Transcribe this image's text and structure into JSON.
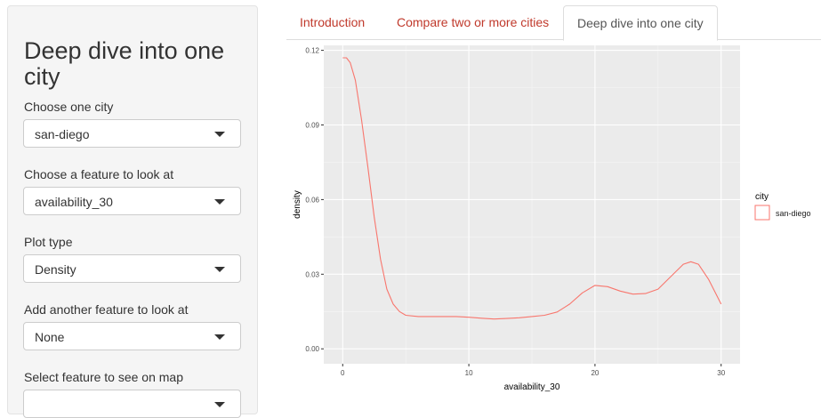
{
  "sidebar": {
    "title": "Deep dive into one city",
    "controls": [
      {
        "label": "Choose one city",
        "value": "san-diego"
      },
      {
        "label": "Choose a feature to look at",
        "value": "availability_30"
      },
      {
        "label": "Plot type",
        "value": "Density"
      },
      {
        "label": "Add another feature to look at",
        "value": "None"
      },
      {
        "label": "Select feature to see on map",
        "value": ""
      }
    ]
  },
  "tabs": [
    {
      "label": "Introduction",
      "active": false
    },
    {
      "label": "Compare two or more cities",
      "active": false
    },
    {
      "label": "Deep dive into one city",
      "active": true
    }
  ],
  "colors": {
    "link": "#c0392b",
    "series": "#f8766d",
    "panel_bg": "#ebebeb"
  },
  "chart_data": {
    "type": "line",
    "xlabel": "availability_30",
    "ylabel": "density",
    "xlim": [
      -1.5,
      31.5
    ],
    "ylim": [
      -0.006,
      0.122
    ],
    "xticks": [
      0,
      10,
      20,
      30
    ],
    "yticks": [
      0.0,
      0.03,
      0.06,
      0.09,
      0.12
    ],
    "xtick_labels": [
      "0",
      "10",
      "20",
      "30"
    ],
    "ytick_labels": [
      "0.00",
      "0.03",
      "0.06",
      "0.09",
      "0.12"
    ],
    "grid": true,
    "legend_title": "city",
    "legend_position": "right",
    "series": [
      {
        "name": "san-diego",
        "x": [
          0,
          0.3,
          0.6,
          1,
          1.5,
          2,
          2.5,
          3,
          3.5,
          4,
          4.5,
          5,
          6,
          7,
          8,
          9,
          10,
          11,
          12,
          13,
          14,
          15,
          16,
          17,
          18,
          19,
          20,
          21,
          22,
          23,
          24,
          25,
          26,
          27,
          27.6,
          28.2,
          29,
          30
        ],
        "y": [
          0.117,
          0.117,
          0.115,
          0.108,
          0.092,
          0.073,
          0.053,
          0.036,
          0.024,
          0.018,
          0.015,
          0.0135,
          0.013,
          0.013,
          0.013,
          0.013,
          0.0127,
          0.0123,
          0.012,
          0.0122,
          0.0125,
          0.013,
          0.0135,
          0.0148,
          0.018,
          0.0225,
          0.0255,
          0.025,
          0.0232,
          0.022,
          0.0222,
          0.024,
          0.029,
          0.034,
          0.035,
          0.034,
          0.028,
          0.018
        ]
      }
    ]
  }
}
